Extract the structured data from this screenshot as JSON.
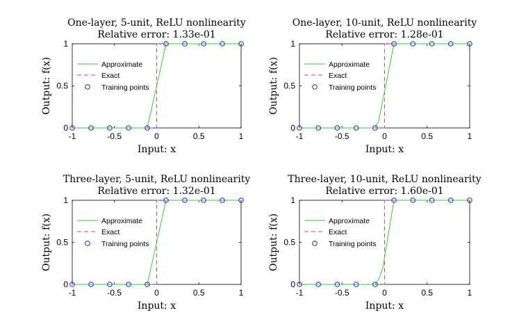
{
  "colors": {
    "approximate": "#2ad62a",
    "exact": "#e8414d",
    "training": "#1f1fd6",
    "axis": "#000000"
  },
  "chart_data": [
    {
      "type": "line",
      "title": "One-layer, 5-unit, ReLU nonlinearity",
      "subtitle": "Relative error: 1.33e-01",
      "xlabel": "Input: x",
      "ylabel": "Output: f(x)",
      "xlim": [
        -1,
        1
      ],
      "ylim": [
        0,
        1
      ],
      "xticks": [
        "-1",
        "-0.5",
        "0",
        "0.5",
        "1"
      ],
      "yticks": [
        "0",
        "0.5",
        "1"
      ],
      "legend": {
        "position": "left-middle",
        "entries": [
          "Approximate",
          "Exact",
          "Training points"
        ]
      },
      "series": [
        {
          "name": "Approximate",
          "x": [
            -1,
            -0.111,
            0.111,
            1
          ],
          "y": [
            0,
            0,
            1,
            1
          ]
        },
        {
          "name": "Exact",
          "x": [
            -1,
            0,
            0,
            1
          ],
          "y": [
            0,
            0,
            1,
            1
          ]
        },
        {
          "name": "Training points",
          "x": [
            -1,
            -0.778,
            -0.556,
            -0.333,
            -0.111,
            0.111,
            0.333,
            0.556,
            0.778,
            1
          ],
          "y": [
            0,
            0,
            0,
            0,
            0,
            1,
            1,
            1,
            1,
            1
          ]
        }
      ]
    },
    {
      "type": "line",
      "title": "One-layer, 10-unit, ReLU nonlinearity",
      "subtitle": "Relative error: 1.28e-01",
      "xlabel": "Input: x",
      "ylabel": "Output: f(x)",
      "xlim": [
        -1,
        1
      ],
      "ylim": [
        0,
        1
      ],
      "xticks": [
        "-1",
        "-0.5",
        "0",
        "0.5",
        "1"
      ],
      "yticks": [
        "0",
        "0.5",
        "1"
      ],
      "legend": {
        "position": "right-middle",
        "entries": [
          "Approximate",
          "Exact",
          "Training points"
        ]
      },
      "series": [
        {
          "name": "Approximate",
          "x": [
            -1,
            -0.111,
            -0.07,
            0.111,
            1
          ],
          "y": [
            0,
            0,
            0.08,
            1,
            1
          ]
        },
        {
          "name": "Exact",
          "x": [
            -1,
            0,
            0,
            1
          ],
          "y": [
            0,
            0,
            1,
            1
          ]
        },
        {
          "name": "Training points",
          "x": [
            -1,
            -0.778,
            -0.556,
            -0.333,
            -0.111,
            0.111,
            0.333,
            0.556,
            0.778,
            1
          ],
          "y": [
            0,
            0,
            0,
            0,
            0,
            1,
            1,
            1,
            1,
            1
          ]
        }
      ]
    },
    {
      "type": "line",
      "title": "Three-layer, 5-unit, ReLU nonlinearity",
      "subtitle": "Relative error: 1.32e-01",
      "xlabel": "Input: x",
      "ylabel": "Output: f(x)",
      "xlim": [
        -1,
        1
      ],
      "ylim": [
        0,
        1
      ],
      "xticks": [
        "-1",
        "-0.5",
        "0",
        "0.5",
        "1"
      ],
      "yticks": [
        "0",
        "0.5",
        "1"
      ],
      "legend": {
        "position": "left-middle",
        "entries": [
          "Approximate",
          "Exact",
          "Training points"
        ]
      },
      "series": [
        {
          "name": "Approximate",
          "x": [
            -1,
            -0.111,
            0.111,
            1
          ],
          "y": [
            0,
            0,
            1,
            1
          ]
        },
        {
          "name": "Exact",
          "x": [
            -1,
            0,
            0,
            1
          ],
          "y": [
            0,
            0,
            1,
            1
          ]
        },
        {
          "name": "Training points",
          "x": [
            -1,
            -0.778,
            -0.556,
            -0.333,
            -0.111,
            0.111,
            0.333,
            0.556,
            0.778,
            1
          ],
          "y": [
            0,
            0,
            0,
            0,
            0,
            1,
            1,
            1,
            1,
            1
          ]
        }
      ]
    },
    {
      "type": "line",
      "title": "Three-layer, 10-unit, ReLU nonlinearity",
      "subtitle": "Relative error: 1.60e-01",
      "xlabel": "Input: x",
      "ylabel": "Output: f(x)",
      "xlim": [
        -1,
        1
      ],
      "ylim": [
        0,
        1
      ],
      "xticks": [
        "-1",
        "-0.5",
        "0",
        "0.5",
        "1"
      ],
      "yticks": [
        "0",
        "0.5",
        "1"
      ],
      "legend": {
        "position": "right-middle",
        "entries": [
          "Approximate",
          "Exact",
          "Training points"
        ]
      },
      "series": [
        {
          "name": "Approximate",
          "x": [
            -1,
            -0.111,
            -0.06,
            -0.02,
            0.111,
            1
          ],
          "y": [
            0,
            0,
            0.08,
            0.2,
            1,
            1
          ]
        },
        {
          "name": "Exact",
          "x": [
            -1,
            0,
            0,
            1
          ],
          "y": [
            0,
            0,
            1,
            1
          ]
        },
        {
          "name": "Training points",
          "x": [
            -1,
            -0.778,
            -0.556,
            -0.333,
            -0.111,
            0.111,
            0.333,
            0.556,
            0.778,
            1
          ],
          "y": [
            0,
            0,
            0,
            0,
            0,
            1,
            1,
            1,
            1,
            1
          ]
        }
      ]
    }
  ]
}
